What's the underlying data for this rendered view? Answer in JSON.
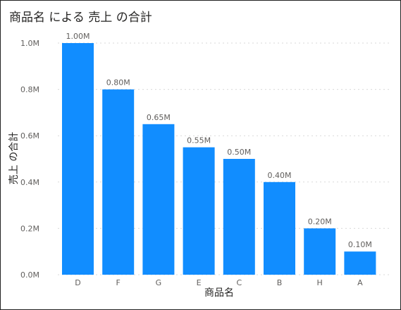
{
  "chart_data": {
    "type": "bar",
    "title": "商品名 による 売上 の合計",
    "xlabel": "商品名",
    "ylabel": "売上 の合計",
    "categories": [
      "D",
      "F",
      "G",
      "E",
      "C",
      "B",
      "H",
      "A"
    ],
    "values": [
      1.0,
      0.8,
      0.65,
      0.55,
      0.5,
      0.4,
      0.2,
      0.1
    ],
    "value_labels": [
      "1.00M",
      "0.80M",
      "0.65M",
      "0.55M",
      "0.50M",
      "0.40M",
      "0.20M",
      "0.10M"
    ],
    "y_ticks": [
      0,
      0.2,
      0.4,
      0.6,
      0.8,
      1.0
    ],
    "y_tick_labels": [
      "0.0M",
      "0.2M",
      "0.4M",
      "0.6M",
      "0.8M",
      "1.0M"
    ],
    "ylim": [
      0,
      1.0
    ],
    "grid": true,
    "bar_color": "#118dff"
  }
}
